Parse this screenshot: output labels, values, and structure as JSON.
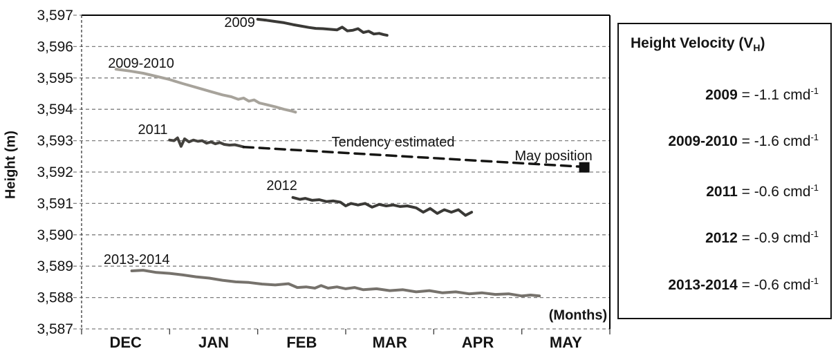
{
  "chart_data": {
    "type": "line",
    "title": "",
    "xlabel": "(Months)",
    "ylabel": "Height (m)",
    "x_categories": [
      "DEC",
      "JAN",
      "FEB",
      "MAR",
      "APR",
      "MAY"
    ],
    "x_unit": "months (0 = start of DEC, 6 = end of MAY)",
    "y_tick_labels": [
      "3,597",
      "3,596",
      "3,595",
      "3,594",
      "3,593",
      "3,592",
      "3,591",
      "3,590",
      "3,589",
      "3,588",
      "3,587"
    ],
    "ylim": [
      3587,
      3597
    ],
    "xlim": [
      0,
      6
    ],
    "grid": "dashed horizontal gridlines at every metre",
    "series": [
      {
        "name": "2009",
        "color": "#3a3936",
        "width": 4,
        "style": "solid",
        "points": [
          [
            2.0,
            3596.87
          ],
          [
            2.1,
            3596.84
          ],
          [
            2.2,
            3596.8
          ],
          [
            2.3,
            3596.76
          ],
          [
            2.4,
            3596.7
          ],
          [
            2.5,
            3596.65
          ],
          [
            2.58,
            3596.61
          ],
          [
            2.66,
            3596.58
          ],
          [
            2.74,
            3596.57
          ],
          [
            2.82,
            3596.55
          ],
          [
            2.9,
            3596.53
          ],
          [
            2.96,
            3596.62
          ],
          [
            3.02,
            3596.5
          ],
          [
            3.08,
            3596.52
          ],
          [
            3.14,
            3596.57
          ],
          [
            3.2,
            3596.45
          ],
          [
            3.26,
            3596.49
          ],
          [
            3.32,
            3596.4
          ],
          [
            3.38,
            3596.42
          ],
          [
            3.43,
            3596.38
          ],
          [
            3.47,
            3596.36
          ]
        ]
      },
      {
        "name": "2009-2010",
        "color": "#a7a39b",
        "width": 4,
        "style": "solid",
        "points": [
          [
            0.39,
            3595.28
          ],
          [
            0.55,
            3595.22
          ],
          [
            0.7,
            3595.15
          ],
          [
            0.85,
            3595.05
          ],
          [
            1.0,
            3594.95
          ],
          [
            1.15,
            3594.82
          ],
          [
            1.3,
            3594.7
          ],
          [
            1.45,
            3594.58
          ],
          [
            1.6,
            3594.46
          ],
          [
            1.7,
            3594.4
          ],
          [
            1.78,
            3594.32
          ],
          [
            1.84,
            3594.36
          ],
          [
            1.9,
            3594.26
          ],
          [
            1.96,
            3594.3
          ],
          [
            2.02,
            3594.2
          ],
          [
            2.1,
            3594.15
          ],
          [
            2.2,
            3594.08
          ],
          [
            2.3,
            3594.0
          ],
          [
            2.38,
            3593.95
          ],
          [
            2.43,
            3593.91
          ]
        ]
      },
      {
        "name": "2011",
        "color": "#44423e",
        "width": 4,
        "style": "solid",
        "points": [
          [
            1.0,
            3593.02
          ],
          [
            1.05,
            3593.0
          ],
          [
            1.09,
            3593.09
          ],
          [
            1.13,
            3592.82
          ],
          [
            1.17,
            3593.06
          ],
          [
            1.22,
            3592.96
          ],
          [
            1.27,
            3593.02
          ],
          [
            1.32,
            3592.98
          ],
          [
            1.37,
            3593.0
          ],
          [
            1.42,
            3592.92
          ],
          [
            1.47,
            3592.96
          ],
          [
            1.52,
            3592.9
          ],
          [
            1.57,
            3592.94
          ],
          [
            1.62,
            3592.88
          ],
          [
            1.68,
            3592.86
          ],
          [
            1.74,
            3592.87
          ],
          [
            1.8,
            3592.83
          ],
          [
            1.84,
            3592.8
          ]
        ]
      },
      {
        "name": "Tendency estimated",
        "color": "#161614",
        "width": 3.5,
        "style": "dashed",
        "points": [
          [
            1.84,
            3592.8
          ],
          [
            5.68,
            3592.17
          ]
        ]
      },
      {
        "name": "2012",
        "color": "#3a3936",
        "width": 4,
        "style": "solid",
        "points": [
          [
            2.4,
            3591.19
          ],
          [
            2.48,
            3591.13
          ],
          [
            2.54,
            3591.16
          ],
          [
            2.62,
            3591.1
          ],
          [
            2.7,
            3591.12
          ],
          [
            2.78,
            3591.06
          ],
          [
            2.86,
            3591.08
          ],
          [
            2.94,
            3591.04
          ],
          [
            3.0,
            3590.92
          ],
          [
            3.06,
            3591.0
          ],
          [
            3.14,
            3590.95
          ],
          [
            3.22,
            3591.0
          ],
          [
            3.3,
            3590.88
          ],
          [
            3.38,
            3590.97
          ],
          [
            3.46,
            3590.92
          ],
          [
            3.54,
            3590.95
          ],
          [
            3.62,
            3590.9
          ],
          [
            3.7,
            3590.92
          ],
          [
            3.8,
            3590.86
          ],
          [
            3.88,
            3590.72
          ],
          [
            3.96,
            3590.84
          ],
          [
            4.04,
            3590.68
          ],
          [
            4.12,
            3590.8
          ],
          [
            4.2,
            3590.72
          ],
          [
            4.28,
            3590.8
          ],
          [
            4.36,
            3590.62
          ],
          [
            4.43,
            3590.72
          ]
        ]
      },
      {
        "name": "2013-2014",
        "color": "#76726c",
        "width": 4,
        "style": "solid",
        "points": [
          [
            0.57,
            3588.85
          ],
          [
            0.7,
            3588.87
          ],
          [
            0.85,
            3588.8
          ],
          [
            1.0,
            3588.77
          ],
          [
            1.15,
            3588.72
          ],
          [
            1.3,
            3588.66
          ],
          [
            1.45,
            3588.62
          ],
          [
            1.6,
            3588.55
          ],
          [
            1.75,
            3588.5
          ],
          [
            1.9,
            3588.48
          ],
          [
            2.05,
            3588.43
          ],
          [
            2.2,
            3588.4
          ],
          [
            2.35,
            3588.44
          ],
          [
            2.45,
            3588.32
          ],
          [
            2.55,
            3588.34
          ],
          [
            2.65,
            3588.3
          ],
          [
            2.72,
            3588.38
          ],
          [
            2.8,
            3588.3
          ],
          [
            2.9,
            3588.34
          ],
          [
            3.0,
            3588.28
          ],
          [
            3.1,
            3588.32
          ],
          [
            3.2,
            3588.25
          ],
          [
            3.35,
            3588.28
          ],
          [
            3.5,
            3588.22
          ],
          [
            3.65,
            3588.25
          ],
          [
            3.8,
            3588.18
          ],
          [
            3.95,
            3588.22
          ],
          [
            4.1,
            3588.15
          ],
          [
            4.25,
            3588.18
          ],
          [
            4.4,
            3588.12
          ],
          [
            4.55,
            3588.15
          ],
          [
            4.7,
            3588.1
          ],
          [
            4.85,
            3588.12
          ],
          [
            5.0,
            3588.05
          ],
          [
            5.1,
            3588.08
          ],
          [
            5.2,
            3588.05
          ]
        ]
      }
    ],
    "marker": {
      "label": "May position",
      "shape": "filled-square",
      "color": "#111111",
      "u": 5.71,
      "h": 3592.15,
      "size": 15
    },
    "annotations": [
      {
        "text": "2009",
        "u": 1.97,
        "h": 3596.78,
        "align": "end",
        "bold": false
      },
      {
        "text": "2009-2010",
        "u": 0.3,
        "h": 3595.48,
        "align": "start",
        "bold": false
      },
      {
        "text": "2011",
        "u": 0.64,
        "h": 3593.37,
        "align": "start",
        "bold": false
      },
      {
        "text": "Tendency estimated",
        "u": 2.84,
        "h": 3592.97,
        "align": "start",
        "bold": false
      },
      {
        "text": "May position",
        "u": 4.92,
        "h": 3592.53,
        "align": "start",
        "bold": false
      },
      {
        "text": "2012",
        "u": 2.1,
        "h": 3591.58,
        "align": "start",
        "bold": false
      },
      {
        "text": "2013-2014",
        "u": 0.25,
        "h": 3589.22,
        "align": "start",
        "bold": false
      },
      {
        "text": "(Months)",
        "u": 5.97,
        "h": 3587.45,
        "align": "end",
        "bold": true
      }
    ],
    "legend_position": "right, outside plot, boxed"
  },
  "legend": {
    "title_prefix": "Height Velocity (V",
    "title_sub": "H",
    "title_suffix": ")",
    "entries": [
      {
        "year": "2009",
        "equals": " = ",
        "value": "-1.1",
        "unit": " cmd",
        "exp": "-1"
      },
      {
        "year": "2009-2010",
        "equals": " = ",
        "value": "-1.6",
        "unit": " cmd",
        "exp": "-1"
      },
      {
        "year": "2011",
        "equals": " = ",
        "value": "-0.6",
        "unit": " cmd",
        "exp": "-1"
      },
      {
        "year": "2012",
        "equals": " = ",
        "value": "-0.9",
        "unit": " cmd",
        "exp": "-1"
      },
      {
        "year": "2013-2014",
        "equals": " = ",
        "value": "-0.6",
        "unit": " cmd",
        "exp": "-1"
      }
    ]
  },
  "colors": {
    "grid": "#7d7d7d",
    "axis": "#444444",
    "border": "#000000",
    "text": "#141414"
  }
}
